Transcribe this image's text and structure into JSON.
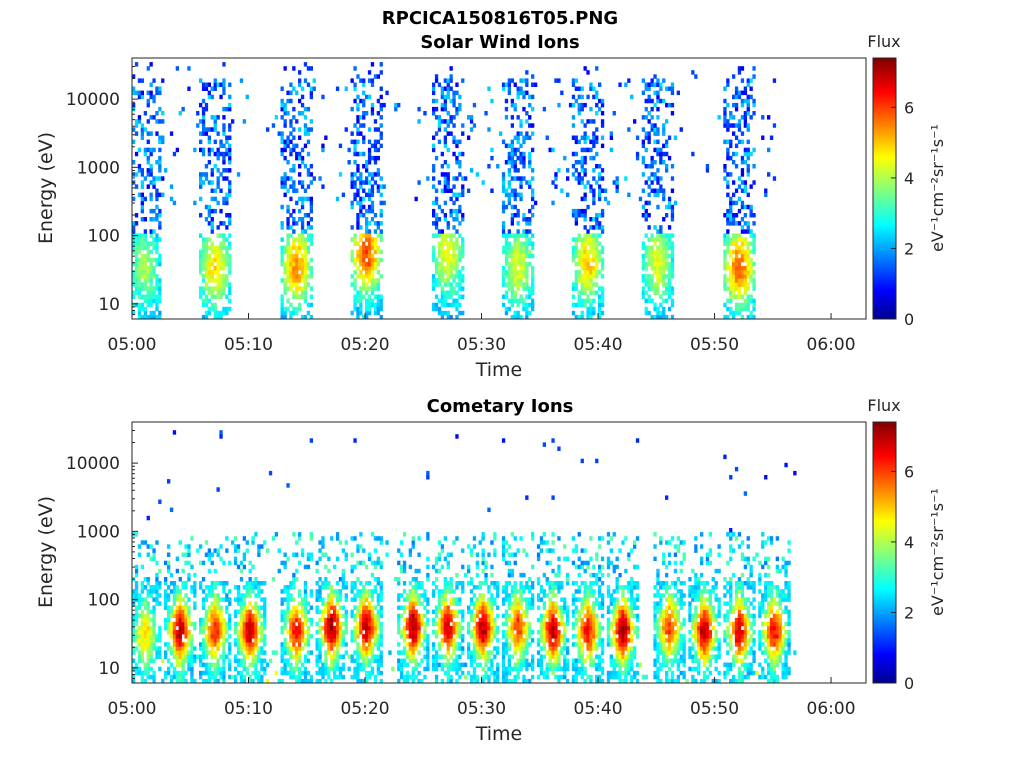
{
  "figure": {
    "title": "RPCICA150816T05.PNG"
  },
  "colorbar": {
    "label": "Flux",
    "unit_label": "eV⁻¹cm⁻²sr⁻¹s⁻¹",
    "ticks": [
      "0",
      "2",
      "4",
      "6"
    ],
    "range": [
      0,
      7.4
    ],
    "colormap": "jet"
  },
  "chart_data": [
    {
      "type": "heatmap",
      "title": "Solar Wind Ions",
      "xlabel": "Time",
      "ylabel": "Energy (eV)",
      "xticks": [
        "05:00",
        "05:10",
        "05:20",
        "05:30",
        "05:40",
        "05:50",
        "06:00"
      ],
      "xlim": [
        "05:00",
        "06:03"
      ],
      "yticks": [
        "10",
        "100",
        "1000",
        "10000"
      ],
      "ylim": [
        6,
        40000
      ],
      "yscale": "log",
      "data_end": "05:57",
      "bursts": [
        {
          "time": "05:01",
          "peak_energy": 35,
          "peak_flux": 4.0
        },
        {
          "time": "05:07",
          "peak_energy": 35,
          "peak_flux": 4.8
        },
        {
          "time": "05:14",
          "peak_energy": 35,
          "peak_flux": 5.5
        },
        {
          "time": "05:20",
          "peak_energy": 55,
          "peak_flux": 6.0
        },
        {
          "time": "05:27",
          "peak_energy": 55,
          "peak_flux": 4.6
        },
        {
          "time": "05:33",
          "peak_energy": 35,
          "peak_flux": 4.4
        },
        {
          "time": "05:39",
          "peak_energy": 40,
          "peak_flux": 5.0
        },
        {
          "time": "05:45",
          "peak_energy": 40,
          "peak_flux": 4.5
        },
        {
          "time": "05:52",
          "peak_energy": 35,
          "peak_flux": 5.8
        }
      ]
    },
    {
      "type": "heatmap",
      "title": "Cometary Ions",
      "xlabel": "Time",
      "ylabel": "Energy (eV)",
      "xticks": [
        "05:00",
        "05:10",
        "05:20",
        "05:30",
        "05:40",
        "05:50",
        "06:00"
      ],
      "xlim": [
        "05:00",
        "06:03"
      ],
      "yticks": [
        "10",
        "100",
        "1000",
        "10000"
      ],
      "ylim": [
        6,
        40000
      ],
      "yscale": "log",
      "data_end": "05:57",
      "bursts": [
        {
          "time": "05:01",
          "peak_energy": 30,
          "peak_flux": 4.8
        },
        {
          "time": "05:04",
          "peak_energy": 35,
          "peak_flux": 7.0
        },
        {
          "time": "05:07",
          "peak_energy": 35,
          "peak_flux": 6.2
        },
        {
          "time": "05:10",
          "peak_energy": 35,
          "peak_flux": 7.0
        },
        {
          "time": "05:14",
          "peak_energy": 35,
          "peak_flux": 6.5
        },
        {
          "time": "05:17",
          "peak_energy": 40,
          "peak_flux": 7.2
        },
        {
          "time": "05:20",
          "peak_energy": 40,
          "peak_flux": 7.0
        },
        {
          "time": "05:24",
          "peak_energy": 40,
          "peak_flux": 7.2
        },
        {
          "time": "05:27",
          "peak_energy": 40,
          "peak_flux": 6.8
        },
        {
          "time": "05:30",
          "peak_energy": 40,
          "peak_flux": 7.0
        },
        {
          "time": "05:33",
          "peak_energy": 40,
          "peak_flux": 6.0
        },
        {
          "time": "05:36",
          "peak_energy": 35,
          "peak_flux": 7.0
        },
        {
          "time": "05:39",
          "peak_energy": 35,
          "peak_flux": 6.5
        },
        {
          "time": "05:42",
          "peak_energy": 35,
          "peak_flux": 7.2
        },
        {
          "time": "05:46",
          "peak_energy": 40,
          "peak_flux": 6.0
        },
        {
          "time": "05:49",
          "peak_energy": 35,
          "peak_flux": 7.0
        },
        {
          "time": "05:52",
          "peak_energy": 35,
          "peak_flux": 6.8
        },
        {
          "time": "05:55",
          "peak_energy": 35,
          "peak_flux": 6.5
        }
      ]
    }
  ]
}
